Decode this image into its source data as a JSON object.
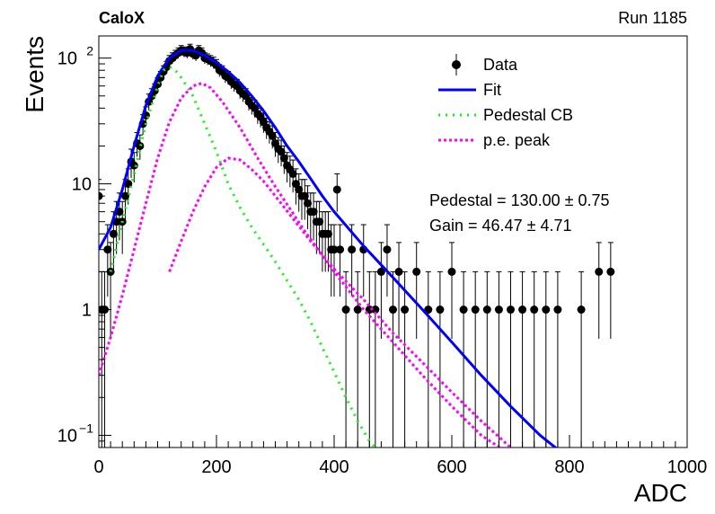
{
  "header": {
    "experiment": "CaloX",
    "run": "Run 1185"
  },
  "stats": {
    "pedestal": "Pedestal = 130.00 ± 0.75",
    "gain": "Gain = 46.47 ± 4.71"
  },
  "colors": {
    "data": "#000000",
    "fit": "#0000ff",
    "pedestal": "#00ff00",
    "pe_peak": "#ff00ff"
  },
  "chart_data": {
    "type": "scatter",
    "xlabel": "ADC",
    "ylabel": "Events",
    "xlim": [
      0,
      1000
    ],
    "ylim": [
      0.08,
      150
    ],
    "yscale": "log",
    "grid": false,
    "legend_position": "top-right",
    "x_ticks": [
      0,
      200,
      400,
      600,
      800,
      1000
    ],
    "y_ticks": [
      {
        "value": 0.1,
        "label": "10",
        "sup": "−1"
      },
      {
        "value": 1,
        "label": "1",
        "sup": ""
      },
      {
        "value": 10,
        "label": "10",
        "sup": ""
      },
      {
        "value": 100,
        "label": "10",
        "sup": "2"
      }
    ],
    "legend": [
      {
        "name": "Data",
        "style": "marker"
      },
      {
        "name": "Fit",
        "style": "line"
      },
      {
        "name": "Pedestal CB",
        "style": "dotted"
      },
      {
        "name": "p.e. peak",
        "style": "dashed"
      }
    ],
    "series": [
      {
        "name": "Data",
        "kind": "points",
        "x": [
          0,
          5,
          10,
          15,
          20,
          25,
          30,
          35,
          40,
          45,
          50,
          55,
          60,
          65,
          70,
          75,
          80,
          85,
          90,
          95,
          100,
          105,
          110,
          115,
          120,
          125,
          130,
          135,
          140,
          145,
          150,
          155,
          160,
          165,
          170,
          175,
          180,
          185,
          190,
          195,
          200,
          205,
          210,
          215,
          220,
          225,
          230,
          235,
          240,
          245,
          250,
          255,
          260,
          265,
          270,
          275,
          280,
          285,
          290,
          295,
          300,
          305,
          310,
          315,
          320,
          325,
          330,
          335,
          340,
          345,
          350,
          355,
          360,
          365,
          370,
          375,
          380,
          385,
          390,
          395,
          400,
          405,
          410,
          420,
          430,
          440,
          450,
          460,
          470,
          480,
          490,
          500,
          510,
          520,
          540,
          560,
          580,
          600,
          620,
          640,
          660,
          680,
          700,
          720,
          740,
          760,
          780,
          820,
          850,
          870
        ],
        "y": [
          8,
          1,
          1,
          3,
          2,
          4,
          5,
          6,
          5,
          8,
          10,
          15,
          14,
          21,
          20,
          30,
          35,
          45,
          50,
          55,
          62,
          70,
          78,
          85,
          95,
          100,
          105,
          110,
          115,
          112,
          110,
          118,
          108,
          105,
          115,
          110,
          100,
          98,
          95,
          92,
          88,
          80,
          78,
          72,
          70,
          65,
          62,
          60,
          55,
          52,
          50,
          45,
          42,
          40,
          36,
          34,
          31,
          28,
          26,
          24,
          21,
          19,
          18,
          16,
          14,
          13,
          12,
          10,
          9,
          8,
          8,
          7,
          6,
          6,
          5,
          5,
          4,
          4,
          4,
          3,
          3,
          9,
          3,
          1,
          3,
          1,
          3,
          1,
          1,
          2,
          3,
          1,
          2,
          1,
          2,
          1,
          1,
          2,
          1,
          1,
          1,
          1,
          1,
          1,
          1,
          1,
          1,
          1,
          2,
          2
        ]
      },
      {
        "name": "Fit",
        "kind": "line",
        "x": [
          0,
          20,
          40,
          60,
          80,
          100,
          120,
          140,
          160,
          180,
          200,
          220,
          240,
          260,
          280,
          300,
          320,
          340,
          360,
          380,
          400,
          450,
          500,
          550,
          600,
          650,
          700,
          750,
          800
        ],
        "y": [
          3,
          4.5,
          9,
          20,
          42,
          72,
          100,
          115,
          115,
          105,
          92,
          78,
          64,
          50,
          38,
          28,
          20,
          15,
          11,
          8,
          6,
          3.2,
          1.8,
          1.0,
          0.55,
          0.3,
          0.17,
          0.1,
          0.065
        ]
      },
      {
        "name": "Pedestal CB",
        "kind": "dotted",
        "x": [
          20,
          40,
          60,
          80,
          100,
          110,
          120,
          130,
          140,
          160,
          180,
          200,
          220,
          240,
          260,
          280,
          300,
          320,
          340,
          360,
          380,
          400,
          420,
          440,
          460,
          480,
          500
        ],
        "y": [
          2,
          5,
          12,
          30,
          60,
          80,
          85,
          80,
          70,
          50,
          30,
          18,
          10,
          6.5,
          4.5,
          3.3,
          2.4,
          1.7,
          1.2,
          0.8,
          0.5,
          0.32,
          0.2,
          0.13,
          0.09,
          0.07,
          0.065
        ]
      },
      {
        "name": "p.e. peak 1",
        "kind": "dashed",
        "x": [
          0,
          20,
          40,
          60,
          80,
          100,
          120,
          140,
          160,
          175,
          190,
          210,
          240,
          270,
          300,
          350,
          400,
          450,
          500,
          550,
          600,
          650,
          700
        ],
        "y": [
          0.3,
          0.6,
          1.3,
          3,
          7,
          16,
          31,
          48,
          60,
          63,
          58,
          45,
          28,
          16,
          9.5,
          4.2,
          2.0,
          1.0,
          0.55,
          0.3,
          0.17,
          0.1,
          0.07
        ]
      },
      {
        "name": "p.e. peak 2",
        "kind": "dashed",
        "x": [
          120,
          140,
          160,
          180,
          200,
          220,
          240,
          260,
          280,
          300,
          330,
          360,
          400,
          450,
          500,
          550,
          600,
          650,
          700
        ],
        "y": [
          2.0,
          3.5,
          6,
          9.5,
          13.5,
          16,
          15.5,
          13,
          10.5,
          8,
          5.3,
          3.5,
          2.1,
          1.2,
          0.65,
          0.38,
          0.22,
          0.13,
          0.08
        ]
      }
    ]
  }
}
